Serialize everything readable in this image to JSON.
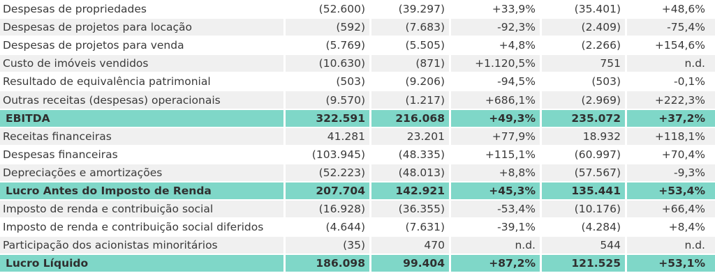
{
  "table": {
    "rows": [
      {
        "label": "Despesas de propriedades",
        "v1": "(52.600)",
        "v2": "(39.297)",
        "v3": "+33,9%",
        "v4": "(35.401)",
        "v5": "+48,6%",
        "style": "plain"
      },
      {
        "label": "Despesas de projetos para locação",
        "v1": "(592)",
        "v2": "(7.683)",
        "v3": "-92,3%",
        "v4": "(2.409)",
        "v5": "-75,4%",
        "style": "alt"
      },
      {
        "label": "Despesas de projetos para venda",
        "v1": "(5.769)",
        "v2": "(5.505)",
        "v3": "+4,8%",
        "v4": "(2.266)",
        "v5": "+154,6%",
        "style": "plain"
      },
      {
        "label": "Custo de imóveis vendidos",
        "v1": "(10.630)",
        "v2": "(871)",
        "v3": "+1.120,5%",
        "v4": "751",
        "v5": "n.d.",
        "style": "alt"
      },
      {
        "label": "Resultado de equivalência patrimonial",
        "v1": "(503)",
        "v2": "(9.206)",
        "v3": "-94,5%",
        "v4": "(503)",
        "v5": "-0,1%",
        "style": "plain"
      },
      {
        "label": "Outras receitas (despesas) operacionais",
        "v1": "(9.570)",
        "v2": "(1.217)",
        "v3": "+686,1%",
        "v4": "(2.969)",
        "v5": "+222,3%",
        "style": "alt"
      },
      {
        "label": "EBITDA",
        "v1": "322.591",
        "v2": "216.068",
        "v3": "+49,3%",
        "v4": "235.072",
        "v5": "+37,2%",
        "style": "highlight"
      },
      {
        "label": "Receitas financeiras",
        "v1": "41.281",
        "v2": "23.201",
        "v3": "+77,9%",
        "v4": "18.932",
        "v5": "+118,1%",
        "style": "alt"
      },
      {
        "label": "Despesas financeiras",
        "v1": "(103.945)",
        "v2": "(48.335)",
        "v3": "+115,1%",
        "v4": "(60.997)",
        "v5": "+70,4%",
        "style": "plain"
      },
      {
        "label": "Depreciações e amortizações",
        "v1": "(52.223)",
        "v2": "(48.013)",
        "v3": "+8,8%",
        "v4": "(57.567)",
        "v5": "-9,3%",
        "style": "alt"
      },
      {
        "label": "Lucro Antes do Imposto de Renda",
        "v1": "207.704",
        "v2": "142.921",
        "v3": "+45,3%",
        "v4": "135.441",
        "v5": "+53,4%",
        "style": "highlight"
      },
      {
        "label": "Imposto de renda e contribuição social",
        "v1": "(16.928)",
        "v2": "(36.355)",
        "v3": "-53,4%",
        "v4": "(10.176)",
        "v5": "+66,4%",
        "style": "alt"
      },
      {
        "label": "Imposto de renda e contribuição social diferidos",
        "v1": "(4.644)",
        "v2": "(7.631)",
        "v3": "-39,1%",
        "v4": "(4.284)",
        "v5": "+8,4%",
        "style": "plain"
      },
      {
        "label": "Participação dos acionistas minoritários",
        "v1": "(35)",
        "v2": "470",
        "v3": "n.d.",
        "v4": "544",
        "v5": "n.d.",
        "style": "alt"
      },
      {
        "label": "Lucro Líquido",
        "v1": "186.098",
        "v2": "99.404",
        "v3": "+87,2%",
        "v4": "121.525",
        "v5": "+53,1%",
        "style": "highlight"
      }
    ]
  }
}
